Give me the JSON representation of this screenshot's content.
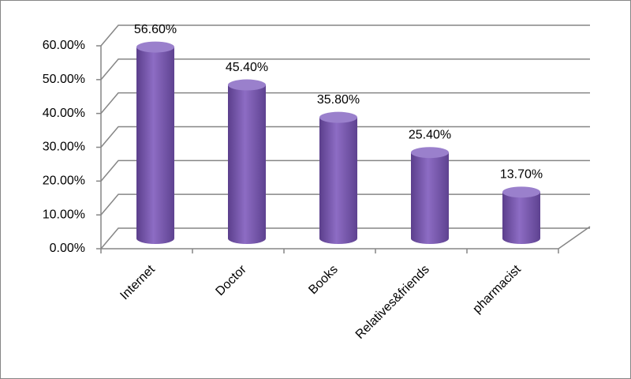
{
  "chart_data": {
    "type": "bar3d",
    "categories": [
      "Internet",
      "Doctor",
      "Books",
      "Relatives&friends",
      "pharmacist"
    ],
    "values": [
      56.6,
      45.4,
      35.8,
      25.4,
      13.7
    ],
    "value_labels": [
      "56.60%",
      "45.40%",
      "35.80%",
      "25.40%",
      "13.70%"
    ],
    "color": "#7b5cb0",
    "ylim": [
      0,
      60
    ],
    "yticks": [
      {
        "value": 0,
        "label": "0.00%"
      },
      {
        "value": 10,
        "label": "10.00%"
      },
      {
        "value": 20,
        "label": "20.00%"
      },
      {
        "value": 30,
        "label": "30.00%"
      },
      {
        "value": 40,
        "label": "40.00%"
      },
      {
        "value": 50,
        "label": "50.00%"
      },
      {
        "value": 60,
        "label": "60.00%"
      }
    ],
    "grid": true
  }
}
